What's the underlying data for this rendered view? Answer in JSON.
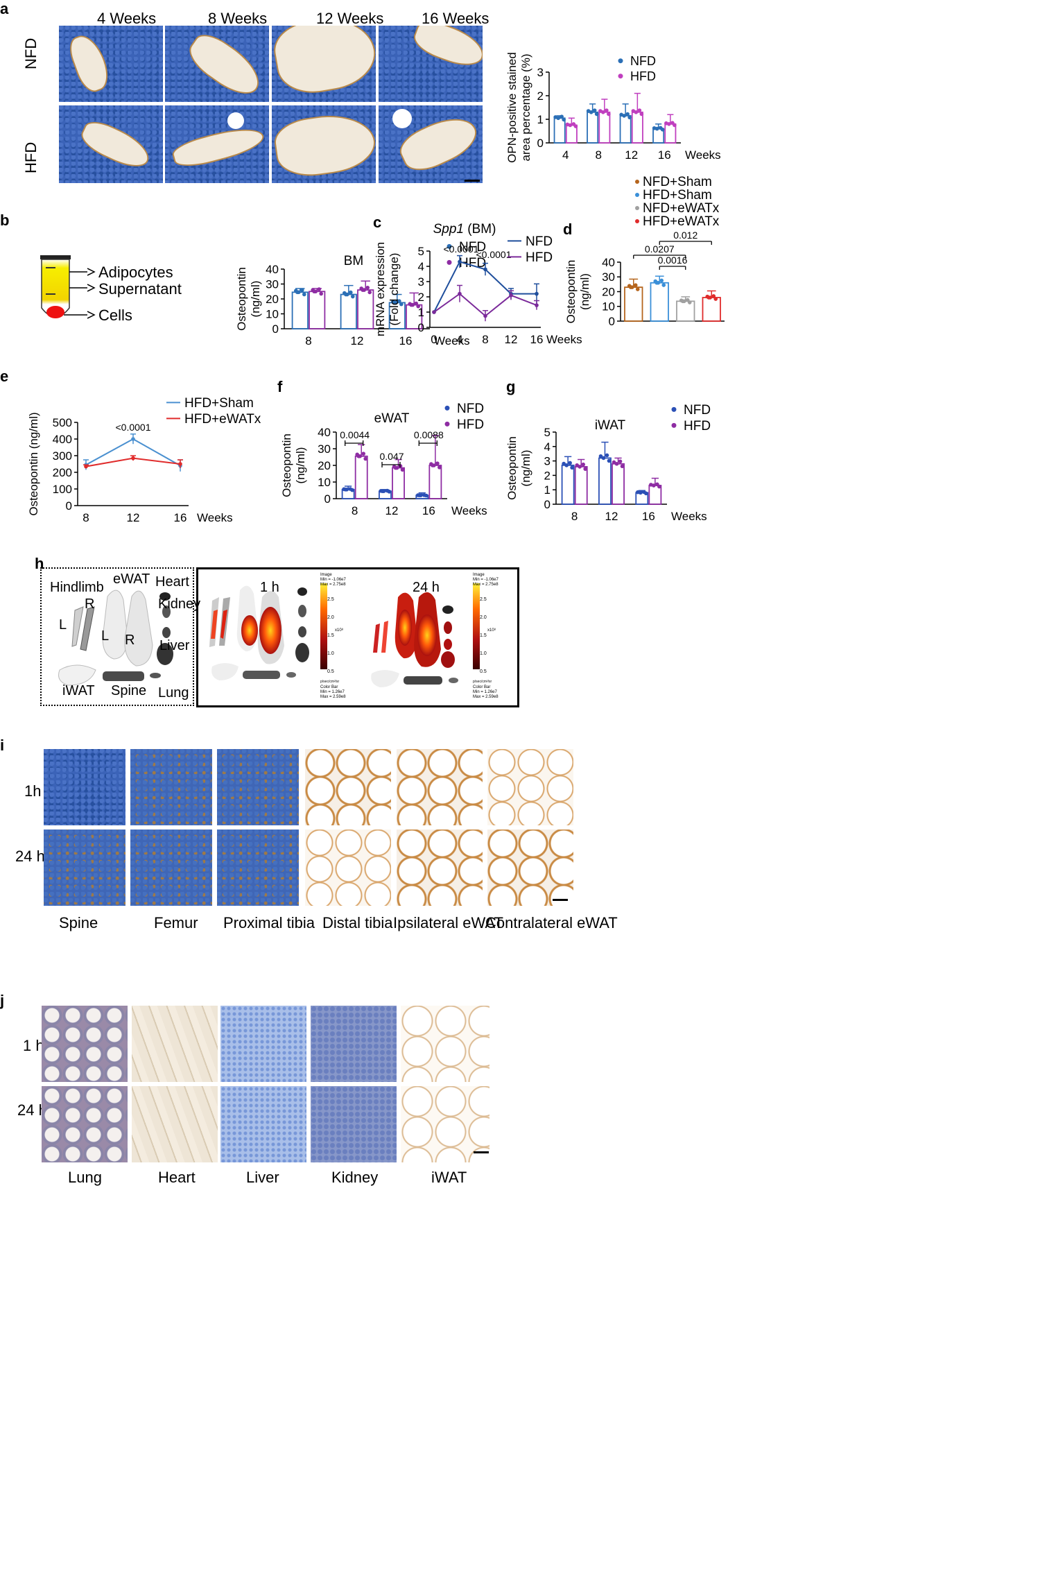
{
  "panels": {
    "a": "a",
    "b": "b",
    "c": "c",
    "d": "d",
    "e": "e",
    "f": "f",
    "g": "g",
    "h": "h",
    "i": "i",
    "j": "j"
  },
  "panel_a": {
    "col_labels": [
      "4 Weeks",
      "8 Weeks",
      "12 Weeks",
      "16 Weeks"
    ],
    "row_labels": [
      "NFD",
      "HFD"
    ]
  },
  "panel_b": {
    "tube_labels": [
      "Adipocytes",
      "Supernatant",
      "Cells"
    ]
  },
  "panel_h": {
    "left_labels": [
      "Hindlimb",
      "eWAT",
      "Heart",
      "R",
      "L",
      "Kidney",
      "L",
      "R",
      "Liver",
      "iWAT",
      "Spine",
      "Lung"
    ],
    "time_labels": [
      "1 h",
      "24 h"
    ],
    "colorbar_ticks": [
      "2.5",
      "2.0",
      "1.5",
      "1.0",
      "0.5"
    ],
    "colorbar_exp": "x10⁸",
    "colorbar_unit": "p/sec/cm²/sr",
    "info_top": [
      "Image",
      "Min = -1.06e7",
      "Max = 2.75e8"
    ],
    "info_bottom": [
      "Color Bar",
      "Min = 1.26e7",
      "Max = 2.59e8"
    ]
  },
  "panel_i": {
    "row_labels": [
      "1h",
      "24 h"
    ],
    "col_labels": [
      "Spine",
      "Femur",
      "Proximal tibia",
      "Distal tibia",
      "Ipsilateral eWAT",
      "Contralateral eWAT"
    ]
  },
  "panel_j": {
    "row_labels": [
      "1 h",
      "24 h"
    ],
    "col_labels": [
      "Lung",
      "Heart",
      "Liver",
      "Kidney",
      "iWAT"
    ]
  },
  "chart_data": [
    {
      "id": "a",
      "type": "bar",
      "ylabel": "OPN-positive stained\narea percentage (%)",
      "xlabel": "Weeks",
      "categories": [
        "4",
        "8",
        "12",
        "16"
      ],
      "ylim": [
        0,
        3
      ],
      "yticks": [
        "0",
        "1",
        "2",
        "3"
      ],
      "series": [
        {
          "name": "NFD",
          "color": "#2b6fb6",
          "values": [
            1.05,
            1.3,
            1.15,
            0.6
          ],
          "err": [
            0.1,
            0.35,
            0.5,
            0.2
          ]
        },
        {
          "name": "HFD",
          "color": "#c03fbf",
          "values": [
            0.75,
            1.3,
            1.3,
            0.8
          ],
          "err": [
            0.3,
            0.55,
            0.8,
            0.4
          ]
        }
      ]
    },
    {
      "id": "b",
      "type": "bar",
      "title": "BM",
      "ylabel": "Osteopontin\n(ng/ml)",
      "xlabel": "Weeks",
      "categories": [
        "8",
        "12",
        "16"
      ],
      "ylim": [
        0,
        40
      ],
      "yticks": [
        "0",
        "10",
        "20",
        "30",
        "40"
      ],
      "series": [
        {
          "name": "NFD",
          "color": "#2b6fb6",
          "values": [
            24.5,
            23,
            17.5
          ],
          "err": [
            2.5,
            6,
            5.5
          ]
        },
        {
          "name": "HFD",
          "color": "#8e2ca3",
          "values": [
            25,
            26,
            16
          ],
          "err": [
            2,
            6,
            8
          ]
        }
      ]
    },
    {
      "id": "c",
      "type": "line",
      "title": "Spp1 (BM)",
      "title_italic": "Spp1",
      "title_rest": " (BM)",
      "ylabel": "mRNA expression\n(Fold change)",
      "xlabel": "Weeks",
      "x": [
        "0",
        "4",
        "8",
        "12",
        "16"
      ],
      "ylim": [
        0,
        5
      ],
      "yticks": [
        "0",
        "1",
        "2",
        "3",
        "4",
        "5"
      ],
      "series": [
        {
          "name": "NFD",
          "color": "#1f4e9c",
          "values": [
            1.0,
            4.3,
            3.8,
            2.2,
            2.2
          ],
          "err": [
            0,
            0.4,
            0.4,
            0.35,
            0.65
          ]
        },
        {
          "name": "HFD",
          "color": "#7b2a9a",
          "values": [
            1.0,
            2.2,
            0.75,
            2.1,
            1.45
          ],
          "err": [
            0,
            0.55,
            0.35,
            0.3,
            0.3
          ]
        }
      ],
      "annotations": [
        "<0.0001",
        "<0.0001"
      ]
    },
    {
      "id": "d",
      "type": "bar",
      "ylabel": "Osteopontin\n(ng/ml)",
      "categories": [
        "NFD+Sham",
        "HFD+Sham",
        "NFD+eWATx",
        "HFD+eWATx"
      ],
      "ylim": [
        0,
        40
      ],
      "yticks": [
        "0",
        "10",
        "20",
        "30",
        "40"
      ],
      "values": [
        23,
        26,
        13.5,
        16
      ],
      "err": [
        5.5,
        4.5,
        3,
        4.5
      ],
      "colors": [
        "#b5651d",
        "#3a8fd8",
        "#a0a0a0",
        "#e02b2b"
      ],
      "annotations": [
        "0.012",
        "0.0207",
        "0.0016"
      ]
    },
    {
      "id": "e",
      "type": "line",
      "ylabel": "Osteopontin (ng/ml)",
      "xlabel": "Weeks",
      "x": [
        "8",
        "12",
        "16"
      ],
      "ylim": [
        0,
        500
      ],
      "yticks": [
        "0",
        "100",
        "200",
        "300",
        "400",
        "500"
      ],
      "series": [
        {
          "name": "HFD+Sham",
          "color": "#4a90d0",
          "values": [
            245,
            400,
            240
          ],
          "err": [
            30,
            30,
            35
          ]
        },
        {
          "name": "HFD+eWATx",
          "color": "#e02b2b",
          "values": [
            235,
            285,
            250
          ],
          "err": [
            10,
            15,
            25
          ]
        }
      ],
      "annotations": [
        "<0.0001"
      ]
    },
    {
      "id": "f",
      "type": "bar",
      "title": "eWAT",
      "ylabel": "Osteopontin\n(ng/ml)",
      "xlabel": "Weeks",
      "categories": [
        "8",
        "12",
        "16"
      ],
      "ylim": [
        0,
        40
      ],
      "yticks": [
        "0",
        "10",
        "20",
        "30",
        "40"
      ],
      "series": [
        {
          "name": "NFD",
          "color": "#2b50b6",
          "values": [
            5.5,
            4.5,
            2
          ],
          "err": [
            2,
            1,
            1.5
          ]
        },
        {
          "name": "HFD",
          "color": "#8e2ca3",
          "values": [
            25.5,
            18.5,
            20
          ],
          "err": [
            7,
            5,
            18
          ]
        }
      ],
      "annotations": [
        "0.0044",
        "0.047",
        "0.0088"
      ]
    },
    {
      "id": "g",
      "type": "bar",
      "title": "iWAT",
      "ylabel": "Osteopontin\n(ng/ml)",
      "xlabel": "Weeks",
      "categories": [
        "8",
        "12",
        "16"
      ],
      "ylim": [
        0,
        5
      ],
      "yticks": [
        "0",
        "1",
        "2",
        "3",
        "4",
        "5"
      ],
      "series": [
        {
          "name": "NFD",
          "color": "#2b50b6",
          "values": [
            2.7,
            3.2,
            0.8
          ],
          "err": [
            0.6,
            1.1,
            0.15
          ]
        },
        {
          "name": "HFD",
          "color": "#8e2ca3",
          "values": [
            2.6,
            2.8,
            1.3
          ],
          "err": [
            0.5,
            0.4,
            0.5
          ]
        }
      ]
    }
  ]
}
